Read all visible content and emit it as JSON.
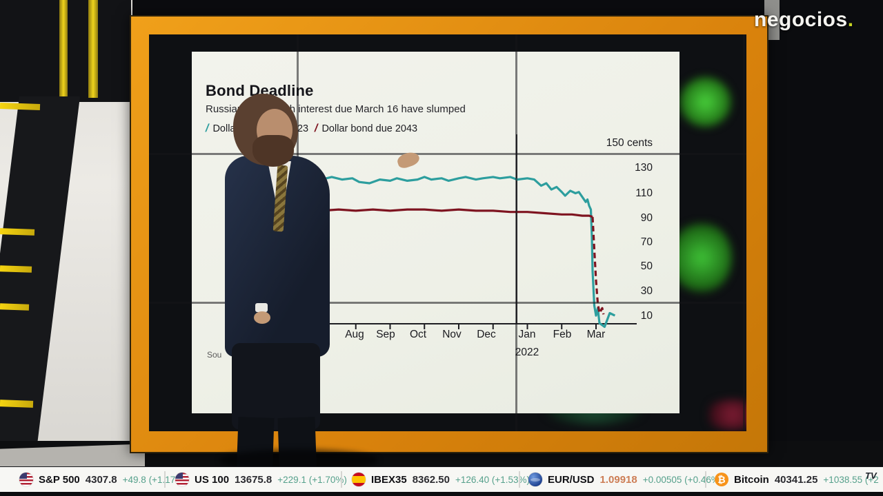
{
  "branding": {
    "logo_text": "negocios",
    "logo_dot": ".",
    "accent_orange": "#e8920f",
    "logo_dot_color": "#c6d323"
  },
  "icons": {
    "btc_symbol": "₿",
    "tv_badge": "TV"
  },
  "chart_data": {
    "type": "line",
    "title": "Bond Deadline",
    "subtitle": "Russian bonds with interest due March 16 have slumped",
    "legend_mark": "/",
    "legend": [
      {
        "name": "Dollar bond due 2023",
        "color": "#2d9e9e"
      },
      {
        "name": "Dollar bond due 2043",
        "color": "#7e1420"
      }
    ],
    "unit_label": "150 cents",
    "y_tick_labels": [
      "150 cents",
      "130",
      "110",
      "90",
      "70",
      "50",
      "30",
      "10"
    ],
    "y_ticks": [
      150,
      130,
      110,
      90,
      70,
      50,
      30,
      10
    ],
    "ylim": [
      0,
      150
    ],
    "x_labels": [
      "Jul",
      "Aug",
      "Sep",
      "Oct",
      "Nov",
      "Dec",
      "Jan",
      "Feb",
      "Mar"
    ],
    "year_label": "2022",
    "source_fragment": "Sou",
    "grid": "panel-seams-only",
    "legend_position": "top-left",
    "series": [
      {
        "name": "Dollar bond due 2023",
        "color": "#2d9e9e",
        "style": "solid",
        "x": [
          -0.35,
          0,
          0.3,
          0.6,
          0.9,
          1.1,
          1.4,
          1.7,
          2,
          2.2,
          2.5,
          2.8,
          3,
          3.2,
          3.5,
          3.7,
          4,
          4.2,
          4.5,
          4.7,
          5,
          5.2,
          5.5,
          5.7,
          6,
          6.2,
          6.4,
          6.55,
          6.7,
          6.85,
          7,
          7.1,
          7.25,
          7.4,
          7.5,
          7.6,
          7.7,
          7.75,
          7.8,
          7.85,
          7.88,
          7.9,
          7.95,
          8,
          8.05,
          8.1,
          8.25,
          8.4,
          8.55
        ],
        "values": [
          120,
          121,
          123,
          121,
          122,
          119,
          118,
          121,
          120,
          122,
          120,
          121,
          123,
          121,
          122,
          120,
          122,
          123,
          121,
          122,
          123,
          122,
          123,
          121,
          122,
          121,
          116,
          118,
          113,
          115,
          111,
          108,
          112,
          110,
          111,
          107,
          103,
          105,
          100,
          97,
          75,
          48,
          20,
          12,
          18,
          6,
          3,
          14,
          12
        ]
      },
      {
        "name": "Dollar bond due 2043",
        "color": "#7e1420",
        "style": "solid",
        "x": [
          -0.35,
          0,
          0.5,
          1,
          1.5,
          2,
          2.5,
          3,
          3.5,
          4,
          4.5,
          5,
          5.5,
          6,
          6.5,
          7,
          7.3,
          7.6,
          7.8,
          7.9
        ],
        "values": [
          96,
          96,
          97,
          96,
          97,
          96,
          97,
          97,
          96,
          97,
          96,
          96,
          95,
          95,
          94,
          93,
          93,
          92,
          92,
          91
        ]
      },
      {
        "name": "Dollar bond due 2043 (March crash)",
        "color": "#7e1420",
        "style": "dashed",
        "x": [
          7.9,
          7.95,
          8,
          8.05,
          8.1,
          8.18,
          8.22
        ],
        "values": [
          91,
          65,
          40,
          22,
          14,
          18,
          13
        ]
      }
    ]
  },
  "ticker": {
    "items": [
      {
        "icon": "us-flag",
        "name": "S&P 500",
        "value": "4307.8",
        "change": "+49.8 (+1.17%)"
      },
      {
        "icon": "us-flag",
        "name": "US 100",
        "value": "13675.8",
        "change": "+229.1 (+1.70%)"
      },
      {
        "icon": "spain-flag",
        "name": "IBEX35",
        "value": "8362.50",
        "change": "+126.40 (+1.53%)"
      },
      {
        "icon": "globe",
        "name": "EUR/USD",
        "value": "1.09918",
        "change": "+0.00505 (+0.46%)"
      },
      {
        "icon": "bitcoin",
        "name": "Bitcoin",
        "value": "40341.25",
        "change": "+1038.55 (+2"
      }
    ]
  }
}
